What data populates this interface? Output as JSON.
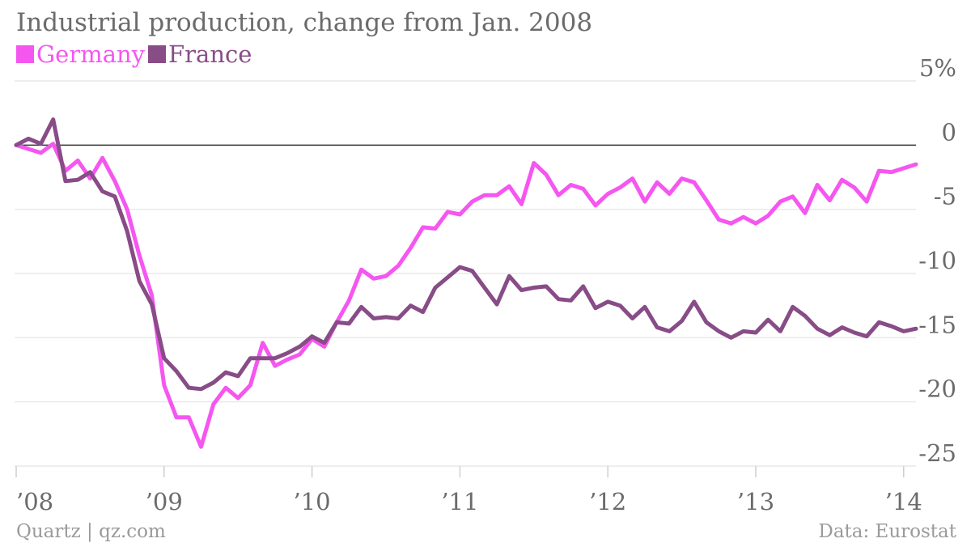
{
  "colors": {
    "germany": "#f556f0",
    "france": "#884c87",
    "grid": "#e4e4e4",
    "zero": "#333333",
    "text": "#6b6b6b"
  },
  "chart_data": {
    "type": "line",
    "title": "Industrial production, change from Jan. 2008",
    "x_start": "2008-01",
    "x_end": "2014-02",
    "x_tick_labels": [
      "’08",
      "’09",
      "’10",
      "’11",
      "’12",
      "’13",
      "’14"
    ],
    "y_ticks": [
      5,
      0,
      -5,
      -10,
      -15,
      -20,
      -25
    ],
    "y_tick_labels": [
      "5%",
      "0",
      "-5",
      "-10",
      "-15",
      "-20",
      "-25"
    ],
    "ylim": [
      -25,
      5
    ],
    "grid": true,
    "legend_position": "top-left",
    "series": [
      {
        "name": "Germany",
        "values": [
          0,
          -0.3,
          -0.6,
          0.1,
          -2.0,
          -1.2,
          -2.6,
          -1.0,
          -2.8,
          -5.0,
          -8.6,
          -11.7,
          -18.7,
          -21.2,
          -21.2,
          -23.5,
          -20.2,
          -18.9,
          -19.7,
          -18.7,
          -15.4,
          -17.2,
          -16.7,
          -16.3,
          -15.1,
          -15.7,
          -13.8,
          -12.1,
          -9.7,
          -10.4,
          -10.2,
          -9.4,
          -8.0,
          -6.4,
          -6.5,
          -5.2,
          -5.4,
          -4.4,
          -3.9,
          -3.9,
          -3.2,
          -4.6,
          -1.4,
          -2.3,
          -3.9,
          -3.1,
          -3.4,
          -4.7,
          -3.8,
          -3.3,
          -2.6,
          -4.4,
          -2.9,
          -3.8,
          -2.6,
          -2.9,
          -4.3,
          -5.8,
          -6.1,
          -5.6,
          -6.1,
          -5.5,
          -4.4,
          -4.0,
          -5.3,
          -3.1,
          -4.3,
          -2.7,
          -3.3,
          -4.4,
          -2.0,
          -2.1,
          -1.8,
          -1.5
        ]
      },
      {
        "name": "France",
        "values": [
          0,
          0.5,
          0.1,
          2.0,
          -2.8,
          -2.7,
          -2.1,
          -3.6,
          -4.0,
          -6.7,
          -10.6,
          -12.4,
          -16.6,
          -17.6,
          -18.9,
          -19.0,
          -18.5,
          -17.7,
          -18.0,
          -16.6,
          -16.6,
          -16.6,
          -16.2,
          -15.7,
          -14.9,
          -15.4,
          -13.8,
          -13.9,
          -12.6,
          -13.5,
          -13.4,
          -13.5,
          -12.5,
          -13.0,
          -11.1,
          -10.3,
          -9.5,
          -9.8,
          -11.1,
          -12.4,
          -10.2,
          -11.3,
          -11.1,
          -11.0,
          -12.0,
          -12.1,
          -11.0,
          -12.7,
          -12.2,
          -12.5,
          -13.5,
          -12.6,
          -14.2,
          -14.5,
          -13.7,
          -12.2,
          -13.8,
          -14.5,
          -15.0,
          -14.5,
          -14.6,
          -13.6,
          -14.5,
          -12.6,
          -13.3,
          -14.3,
          -14.8,
          -14.2,
          -14.6,
          -14.9,
          -13.8,
          -14.1,
          -14.5,
          -14.3
        ]
      }
    ]
  },
  "footer": {
    "source_left": "Quartz | qz.com",
    "source_right": "Data: Eurostat"
  }
}
